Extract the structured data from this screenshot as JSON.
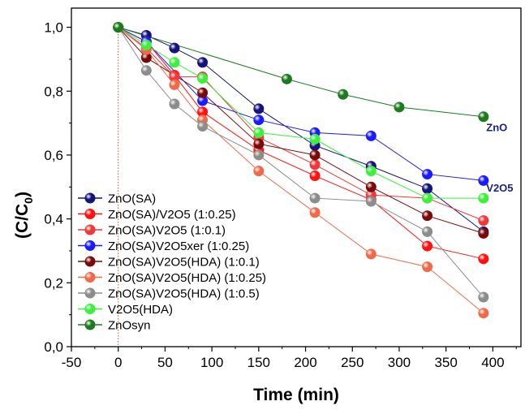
{
  "chart_data": {
    "type": "line",
    "xlabel": "Time (min)",
    "ylabel_main": "(C/C",
    "ylabel_sub": "0",
    "ylabel_close": ")",
    "xlim": [
      -50,
      430
    ],
    "ylim": [
      0.0,
      1.06
    ],
    "xticks": [
      -50,
      0,
      50,
      100,
      150,
      200,
      250,
      300,
      350,
      400
    ],
    "yticks": [
      0.0,
      0.2,
      0.4,
      0.6,
      0.8,
      1.0
    ],
    "ytick_labels": [
      "0,0",
      "0,2",
      "0,4",
      "0,6",
      "0,8",
      "1,0"
    ],
    "grid": false,
    "legend_position": "left",
    "series": [
      {
        "name": "ZnO(SA)",
        "color": "#13137a",
        "x": [
          0,
          30,
          60,
          90,
          150,
          210,
          270,
          330,
          390
        ],
        "y": [
          1.0,
          0.975,
          0.935,
          0.89,
          0.745,
          0.63,
          0.565,
          0.495,
          0.36
        ]
      },
      {
        "name": "ZnO(SA)/V2O5 (1:0.25)",
        "color": "#ff1111",
        "x": [
          0,
          30,
          60,
          90,
          150,
          210,
          270,
          330,
          390
        ],
        "y": [
          1.0,
          0.955,
          0.85,
          0.735,
          0.615,
          0.535,
          0.46,
          0.315,
          0.275
        ]
      },
      {
        "name": "ZnO(SA)V2O5 (1:0.1)",
        "color": "#f03838",
        "x": [
          0,
          30,
          60,
          90,
          150,
          210,
          270,
          330,
          390
        ],
        "y": [
          1.0,
          0.935,
          0.845,
          0.845,
          0.655,
          0.57,
          0.475,
          0.465,
          0.395
        ]
      },
      {
        "name": "ZnO(SA)V2O5xer (1:0.25)",
        "color": "#1a1aff",
        "x": [
          0,
          30,
          90,
          150,
          210,
          270,
          330,
          390
        ],
        "y": [
          1.0,
          0.955,
          0.77,
          0.71,
          0.67,
          0.66,
          0.54,
          0.52
        ]
      },
      {
        "name": "ZnO(SA)V2O5(HDA) (1:0.1)",
        "color": "#7a0a0a",
        "x": [
          0,
          30,
          90,
          150,
          210,
          270,
          330,
          390
        ],
        "y": [
          1.0,
          0.905,
          0.795,
          0.635,
          0.6,
          0.5,
          0.41,
          0.355
        ]
      },
      {
        "name": "ZnO(SA)V2O5(HDA) (1:0.25)",
        "color": "#ee6a4a",
        "x": [
          0,
          30,
          60,
          90,
          150,
          210,
          270,
          330,
          390
        ],
        "y": [
          1.0,
          0.93,
          0.82,
          0.71,
          0.55,
          0.42,
          0.29,
          0.25,
          0.105
        ]
      },
      {
        "name": "ZnO(SA)V2O5(HDA) (1:0.5)",
        "color": "#8c8c8c",
        "x": [
          0,
          30,
          60,
          90,
          150,
          210,
          270,
          330,
          390
        ],
        "y": [
          1.0,
          0.865,
          0.76,
          0.69,
          0.6,
          0.465,
          0.455,
          0.36,
          0.155
        ]
      },
      {
        "name": "V2O5(HDA)",
        "color": "#3df03d",
        "x": [
          0,
          30,
          60,
          90,
          150,
          210,
          270,
          330,
          390
        ],
        "y": [
          1.0,
          0.945,
          0.89,
          0.84,
          0.67,
          0.65,
          0.55,
          0.465,
          0.465
        ]
      },
      {
        "name": "ZnOsyn",
        "color": "#1e7a1e",
        "x": [
          0,
          180,
          240,
          300,
          390
        ],
        "y": [
          1.0,
          0.838,
          0.79,
          0.75,
          0.72
        ]
      }
    ],
    "annotations": [
      {
        "text": "ZnO",
        "x": 393,
        "y": 0.675,
        "color": "#1a237e"
      },
      {
        "text": "V2O5",
        "x": 393,
        "y": 0.485,
        "color": "#1a237e"
      },
      {
        "text": "ZnO(SA)V2O5(HDA) (1:0.25)",
        "x": 442,
        "y": 0.045,
        "color": "#1a237e"
      }
    ]
  }
}
